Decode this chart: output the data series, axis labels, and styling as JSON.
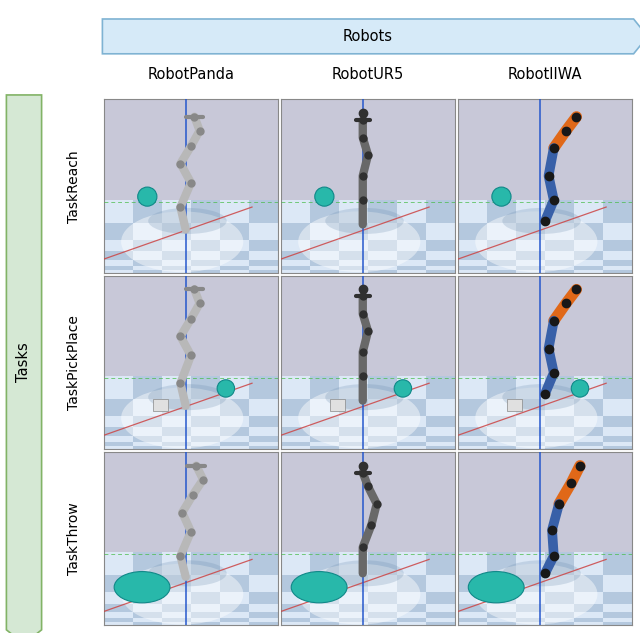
{
  "robots_label": "Robots",
  "tasks_label": "Tasks",
  "col_labels": [
    "RobotPanda",
    "RobotUR5",
    "RobotIIWA"
  ],
  "row_labels": [
    "TaskReach",
    "TaskPickPlace",
    "TaskThrow"
  ],
  "robots_arrow_color": "#d6eaf8",
  "robots_arrow_border": "#7fb3d3",
  "tasks_arrow_color": "#d5e8d4",
  "tasks_arrow_border": "#82b366",
  "bg_color": "#ffffff",
  "cell_border_color": "#999999",
  "label_fontsize": 10.5,
  "col_label_fontsize": 10.5,
  "row_label_fontsize": 10,
  "grid_rows": 3,
  "grid_cols": 3,
  "floor_light": "#d8e4f0",
  "floor_dark": "#b0c4d8",
  "floor_upper_light": "#ccd0e0",
  "floor_upper_dark": "#a8b0c8",
  "checkerboard_rows": 6,
  "checkerboard_cols": 8
}
